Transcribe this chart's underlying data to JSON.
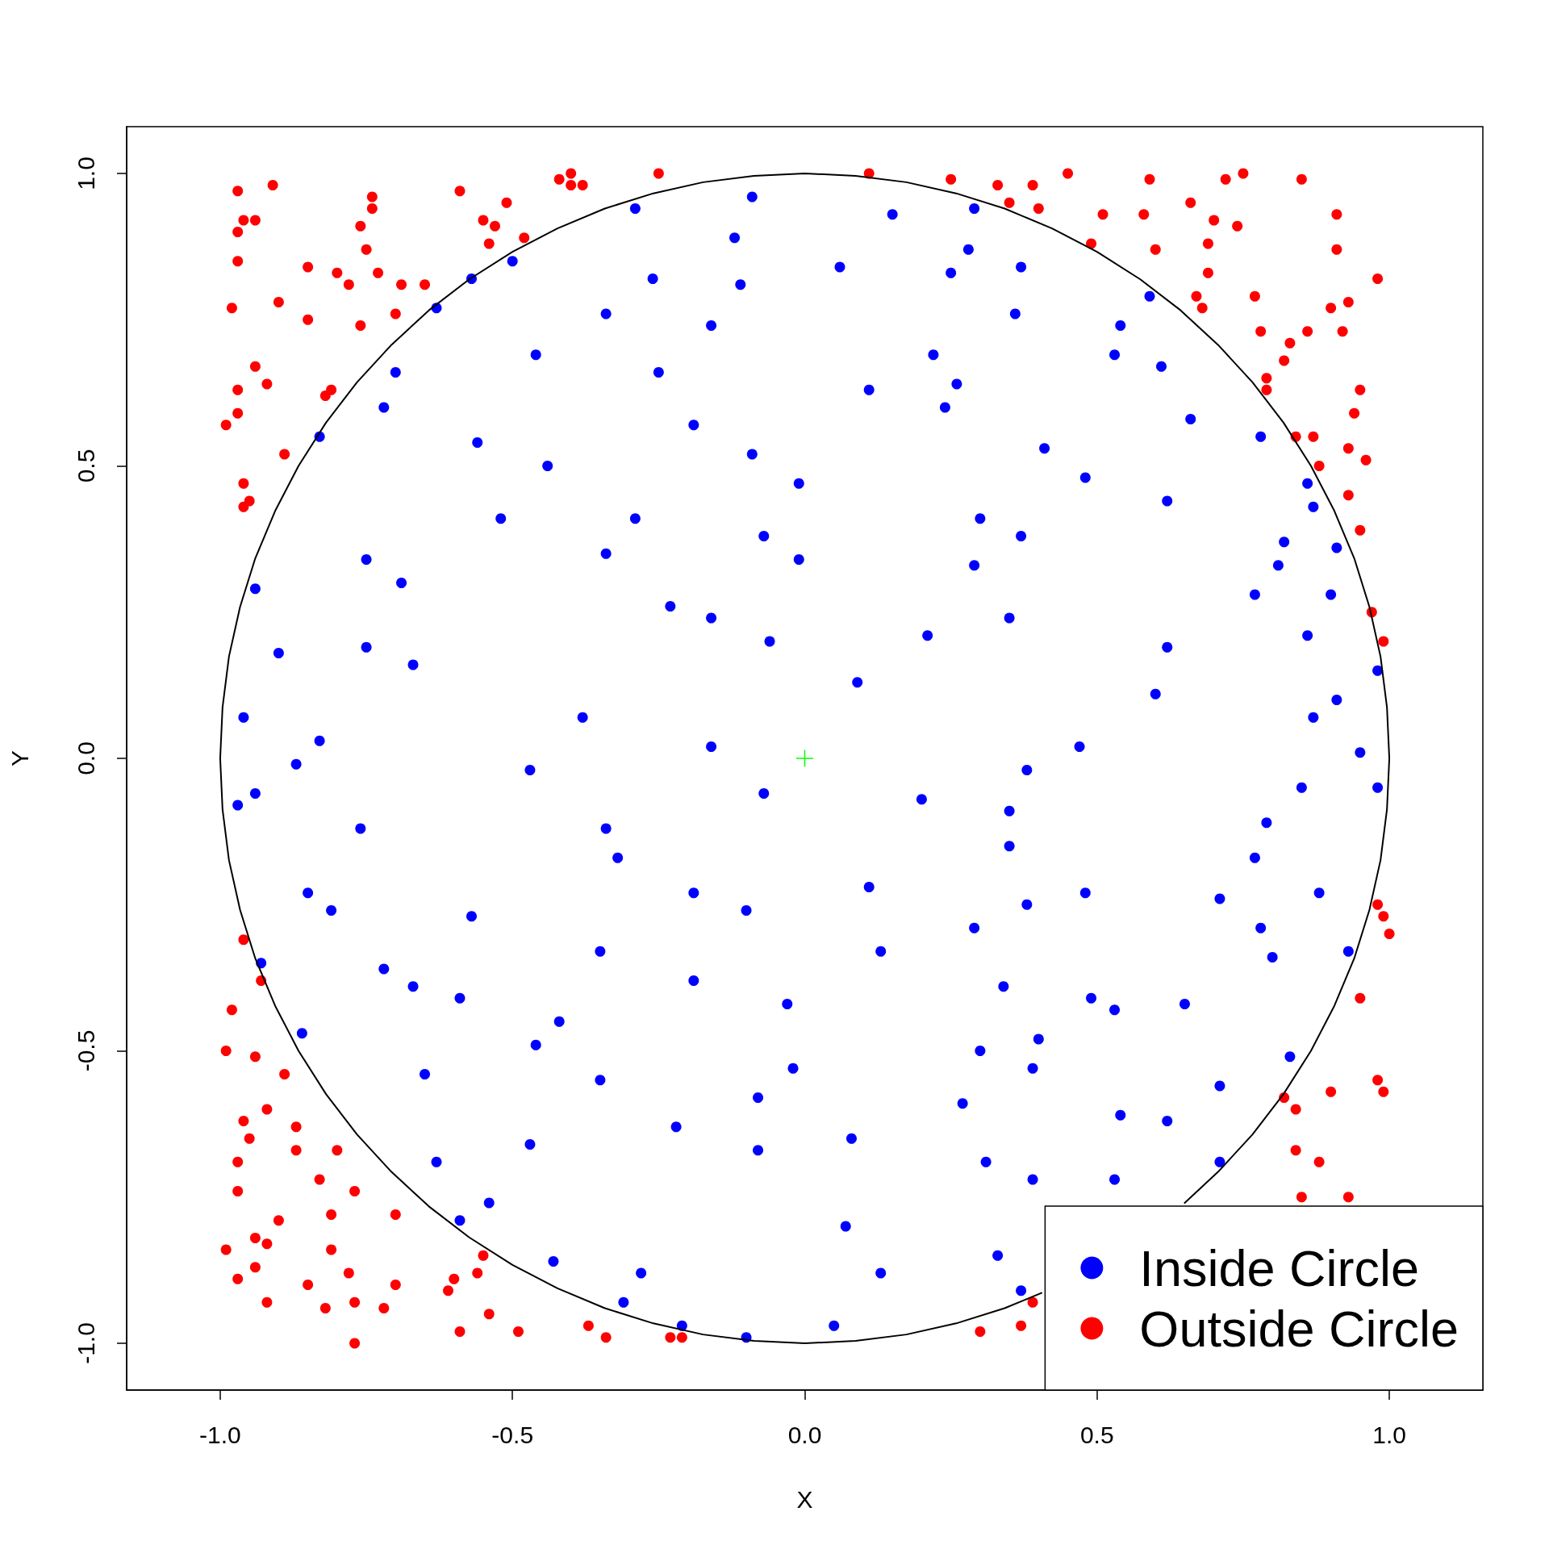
{
  "chart_data": {
    "type": "scatter",
    "xlabel": "X",
    "ylabel": "Y",
    "xlim": [
      -1.16,
      1.16
    ],
    "ylim": [
      -1.08,
      1.08
    ],
    "xticks": [
      {
        "value": -1,
        "label": "-1.0"
      },
      {
        "value": -0.5,
        "label": "-0.5"
      },
      {
        "value": 0,
        "label": "0.0"
      },
      {
        "value": 0.5,
        "label": "0.5"
      },
      {
        "value": 1,
        "label": "1.0"
      }
    ],
    "yticks": [
      {
        "value": -1,
        "label": "-1.0"
      },
      {
        "value": -0.5,
        "label": "-0.5"
      },
      {
        "value": 0,
        "label": "0.0"
      },
      {
        "value": 0.5,
        "label": "0.5"
      },
      {
        "value": 1,
        "label": "1.0"
      }
    ],
    "legend": "bottom right",
    "marker": "circle",
    "series": [
      {
        "name": "Inside Circle",
        "color": "#0000ff",
        "x": [
          -0.29,
          -0.09,
          -0.12,
          -0.5,
          -0.57,
          -0.26,
          -0.63,
          -0.34,
          -0.11,
          -0.16,
          -0.46,
          -0.7,
          -0.25,
          -0.72,
          -0.19,
          -0.83,
          -0.56,
          -0.09,
          -0.44,
          -0.01,
          -0.52,
          -0.29,
          -0.07,
          -0.75,
          -0.94,
          -0.69,
          -0.34,
          -0.01,
          -0.23,
          -0.9,
          -0.75,
          -0.16,
          -0.67,
          -0.06,
          -0.96,
          -0.38,
          -0.83,
          -0.16,
          0.15,
          0.29,
          0.28,
          0.37,
          0.25,
          0.59,
          0.36,
          0.54,
          0.22,
          0.53,
          0.11,
          0.61,
          0.26,
          0.24,
          0.66,
          0.78,
          0.41,
          0.86,
          0.48,
          0.62,
          0.87,
          0.3,
          0.37,
          0.91,
          0.82,
          0.29,
          0.81,
          0.9,
          0.35,
          0.77,
          0.86,
          0.21,
          0.62,
          0.6,
          0.91,
          0.87,
          0.47,
          0.95,
          0.98,
          0.06,
          0.09,
          -0.87,
          -0.94,
          -0.47,
          -0.07,
          -0.76,
          -0.34,
          -0.85,
          -0.32,
          -0.81,
          -0.19,
          -0.57,
          -0.1,
          -0.72,
          -0.35,
          -0.67,
          -0.19,
          -0.59,
          -0.03,
          -0.42,
          -0.46,
          -0.65,
          -0.35,
          -0.02,
          -0.08,
          -0.22,
          -0.47,
          -0.08,
          -0.63,
          -0.54,
          -0.59,
          -0.43,
          -0.28,
          -0.31,
          -0.1,
          -0.97,
          -0.93,
          -0.86,
          -0.21,
          0.38,
          0.2,
          0.85,
          0.79,
          0.35,
          0.35,
          0.77,
          0.11,
          0.48,
          0.88,
          0.38,
          0.71,
          0.29,
          0.78,
          0.13,
          0.8,
          0.93,
          0.34,
          0.49,
          0.53,
          0.65,
          0.4,
          0.3,
          0.39,
          0.83,
          0.71,
          0.54,
          0.27,
          0.08,
          0.31,
          0.39,
          0.53,
          0.71,
          0.07,
          0.33,
          0.13,
          0.05,
          0.62,
          0.37,
          0.98
        ],
        "values": [
          0.94,
          0.96,
          0.89,
          0.85,
          0.82,
          0.82,
          0.77,
          0.76,
          0.81,
          0.74,
          0.69,
          0.66,
          0.66,
          0.6,
          0.57,
          0.55,
          0.54,
          0.52,
          0.5,
          0.47,
          0.41,
          0.41,
          0.38,
          0.34,
          0.29,
          0.3,
          0.35,
          0.34,
          0.26,
          0.18,
          0.19,
          0.24,
          0.16,
          0.2,
          0.07,
          0.07,
          0.03,
          0.02,
          0.93,
          0.94,
          0.87,
          0.84,
          0.83,
          0.79,
          0.76,
          0.74,
          0.69,
          0.69,
          0.63,
          0.67,
          0.64,
          0.6,
          0.58,
          0.55,
          0.53,
          0.47,
          0.48,
          0.44,
          0.43,
          0.41,
          0.38,
          0.36,
          0.37,
          0.33,
          0.33,
          0.28,
          0.24,
          0.28,
          0.21,
          0.21,
          0.19,
          0.11,
          0.1,
          0.07,
          0.02,
          0.01,
          0.15,
          0.84,
          0.13,
          -0.01,
          -0.06,
          -0.02,
          -0.06,
          -0.12,
          -0.12,
          -0.23,
          -0.17,
          -0.26,
          -0.23,
          -0.27,
          -0.26,
          -0.36,
          -0.33,
          -0.39,
          -0.38,
          -0.41,
          -0.42,
          -0.45,
          -0.49,
          -0.54,
          -0.55,
          -0.53,
          -0.58,
          -0.63,
          -0.66,
          -0.67,
          -0.69,
          -0.76,
          -0.79,
          -0.86,
          -0.88,
          -0.93,
          -0.99,
          -0.08,
          -0.35,
          -0.47,
          -0.97,
          -0.02,
          -0.07,
          -0.05,
          -0.11,
          -0.09,
          -0.15,
          -0.17,
          -0.22,
          -0.23,
          -0.23,
          -0.25,
          -0.24,
          -0.29,
          -0.29,
          -0.33,
          -0.34,
          -0.33,
          -0.39,
          -0.41,
          -0.43,
          -0.42,
          -0.48,
          -0.5,
          -0.53,
          -0.51,
          -0.56,
          -0.61,
          -0.59,
          -0.65,
          -0.69,
          -0.72,
          -0.72,
          -0.69,
          -0.8,
          -0.85,
          -0.88,
          -0.97,
          -0.62,
          -0.91,
          -0.05
        ]
      },
      {
        "name": "Outside Circle",
        "color": "#ff0000",
        "x": [
          -0.97,
          -0.91,
          -0.74,
          -0.74,
          -0.59,
          -0.51,
          -0.42,
          -0.4,
          -0.4,
          -0.38,
          -0.25,
          -0.96,
          -0.94,
          -0.97,
          -0.76,
          -0.55,
          -0.53,
          -0.54,
          -0.48,
          -0.75,
          -0.97,
          -0.85,
          -0.8,
          -0.73,
          -0.78,
          -0.69,
          -0.65,
          -0.98,
          -0.9,
          -0.85,
          -0.76,
          -0.7,
          -0.94,
          -0.92,
          -0.97,
          -0.81,
          -0.82,
          -0.97,
          -0.99,
          -0.89,
          -0.96,
          -0.95,
          -0.96,
          0.11,
          0.25,
          0.33,
          0.39,
          0.35,
          0.4,
          0.45,
          0.51,
          0.49,
          0.59,
          0.58,
          0.66,
          0.72,
          0.75,
          0.7,
          0.74,
          0.85,
          0.91,
          0.6,
          0.69,
          0.91,
          0.69,
          0.67,
          0.68,
          0.77,
          0.98,
          0.93,
          0.9,
          0.78,
          0.86,
          0.92,
          0.83,
          0.82,
          0.79,
          0.79,
          0.95,
          0.94,
          0.84,
          0.87,
          0.93,
          0.96,
          0.88,
          0.93,
          0.95,
          0.97,
          0.99,
          -0.96,
          -0.93,
          -0.98,
          -0.99,
          -0.94,
          -0.89,
          -0.92,
          -0.96,
          -0.87,
          -0.95,
          -0.87,
          -0.8,
          -0.97,
          -0.97,
          -0.83,
          -0.77,
          -0.81,
          -0.7,
          -0.9,
          -0.94,
          -0.92,
          -0.99,
          -0.81,
          -0.94,
          -0.78,
          -0.97,
          -0.85,
          -0.92,
          -0.82,
          -0.77,
          -0.7,
          -0.72,
          -0.77,
          -0.55,
          -0.56,
          -0.6,
          -0.61,
          -0.59,
          -0.54,
          -0.49,
          -0.37,
          -0.34,
          -0.23,
          -0.21,
          0.98,
          0.99,
          1.0,
          0.95,
          0.98,
          0.99,
          0.9,
          0.82,
          0.84,
          0.84,
          0.88,
          0.85,
          0.93,
          0.39,
          0.3,
          0.37
        ],
        "values": [
          0.97,
          0.98,
          0.96,
          0.94,
          0.97,
          0.95,
          0.99,
          1.0,
          0.98,
          0.98,
          1.0,
          0.92,
          0.92,
          0.9,
          0.91,
          0.92,
          0.91,
          0.88,
          0.89,
          0.87,
          0.85,
          0.84,
          0.83,
          0.83,
          0.81,
          0.81,
          0.81,
          0.77,
          0.78,
          0.75,
          0.74,
          0.76,
          0.67,
          0.64,
          0.63,
          0.63,
          0.62,
          0.59,
          0.57,
          0.52,
          0.47,
          0.44,
          0.43,
          1.0,
          0.99,
          0.98,
          0.98,
          0.95,
          0.94,
          1.0,
          0.93,
          0.88,
          0.99,
          0.93,
          0.95,
          0.99,
          1.0,
          0.92,
          0.91,
          0.99,
          0.93,
          0.87,
          0.88,
          0.87,
          0.83,
          0.79,
          0.77,
          0.79,
          0.82,
          0.78,
          0.77,
          0.73,
          0.73,
          0.73,
          0.71,
          0.68,
          0.65,
          0.63,
          0.63,
          0.59,
          0.55,
          0.55,
          0.53,
          0.51,
          0.5,
          0.45,
          0.39,
          0.25,
          0.2,
          -0.31,
          -0.38,
          -0.43,
          -0.5,
          -0.51,
          -0.54,
          -0.6,
          -0.62,
          -0.63,
          -0.65,
          -0.67,
          -0.67,
          -0.69,
          -0.74,
          -0.72,
          -0.74,
          -0.78,
          -0.78,
          -0.79,
          -0.82,
          -0.83,
          -0.84,
          -0.84,
          -0.87,
          -0.88,
          -0.89,
          -0.9,
          -0.93,
          -0.94,
          -0.93,
          -0.9,
          -0.94,
          -1.0,
          -0.85,
          -0.88,
          -0.89,
          -0.91,
          -0.98,
          -0.95,
          -0.98,
          -0.97,
          -0.99,
          -0.99,
          -0.99,
          -0.25,
          -0.27,
          -0.3,
          -0.41,
          -0.55,
          -0.57,
          -0.57,
          -0.58,
          -0.6,
          -0.67,
          -0.69,
          -0.75,
          -0.75,
          -0.93,
          -0.98,
          -0.97
        ]
      },
      {
        "type": "line",
        "color": "#000000",
        "marker": "none",
        "x": [
          1,
          0.996,
          0.985,
          0.966,
          0.94,
          0.906,
          0.866,
          0.819,
          0.766,
          0.707,
          0.643,
          0.574,
          0.5,
          0.423,
          0.342,
          0.259,
          0.174,
          0.087,
          0,
          -0.087,
          -0.174,
          -0.259,
          -0.342,
          -0.423,
          -0.5,
          -0.574,
          -0.643,
          -0.707,
          -0.766,
          -0.819,
          -0.866,
          -0.906,
          -0.94,
          -0.966,
          -0.985,
          -0.996,
          -1,
          -0.996,
          -0.985,
          -0.966,
          -0.94,
          -0.906,
          -0.866,
          -0.819,
          -0.766,
          -0.707,
          -0.643,
          -0.574,
          -0.5,
          -0.423,
          -0.342,
          -0.259,
          -0.174,
          -0.087,
          0,
          0.087,
          0.174,
          0.259,
          0.342,
          0.405,
          0.5,
          0.65,
          0.707,
          0.766,
          0.819,
          0.866,
          0.906,
          0.94,
          0.966,
          0.985,
          0.996,
          1
        ],
        "values": [
          0,
          0.087,
          0.174,
          0.259,
          0.342,
          0.423,
          0.5,
          0.574,
          0.643,
          0.707,
          0.766,
          0.819,
          0.866,
          0.906,
          0.94,
          0.966,
          0.985,
          0.996,
          1,
          0.996,
          0.985,
          0.966,
          0.94,
          0.906,
          0.866,
          0.819,
          0.766,
          0.707,
          0.643,
          0.574,
          0.5,
          0.423,
          0.342,
          0.259,
          0.174,
          0.087,
          0,
          -0.087,
          -0.174,
          -0.259,
          -0.342,
          -0.423,
          -0.5,
          -0.574,
          -0.643,
          -0.707,
          -0.766,
          -0.819,
          -0.866,
          -0.906,
          -0.94,
          -0.966,
          -0.985,
          -0.996,
          -1,
          -0.996,
          -0.985,
          -0.966,
          -0.94,
          -0.914,
          null,
          -0.76,
          -0.707,
          -0.643,
          -0.574,
          -0.5,
          -0.423,
          -0.342,
          -0.259,
          -0.174,
          -0.087,
          0
        ]
      },
      {
        "type": "scatter",
        "color": "#00ff00",
        "marker": "cross",
        "x": [
          0
        ],
        "values": [
          0
        ]
      }
    ]
  }
}
